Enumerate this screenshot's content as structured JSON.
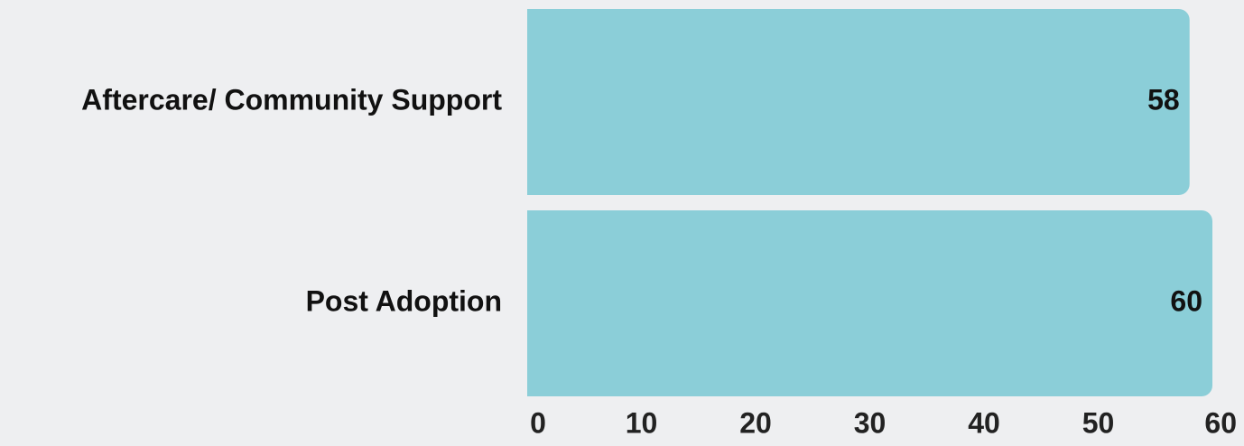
{
  "colors": {
    "background": "#EEEFF1",
    "bar": "#8BCED8",
    "text": "#222222",
    "label_text": "#111111"
  },
  "chart_data": {
    "type": "bar",
    "orientation": "horizontal",
    "categories": [
      "Aftercare/ Community Support",
      "Post Adoption"
    ],
    "values": [
      58,
      60
    ],
    "value_labels": [
      "58",
      "60"
    ],
    "xlim": [
      0,
      60
    ],
    "x_ticks": [
      0,
      10,
      20,
      30,
      40,
      50,
      60
    ],
    "x_tick_labels": [
      "0",
      "10",
      "20",
      "30",
      "40",
      "50",
      "60"
    ],
    "title": "",
    "xlabel": "",
    "ylabel": "",
    "grid": false,
    "legend": "none"
  }
}
